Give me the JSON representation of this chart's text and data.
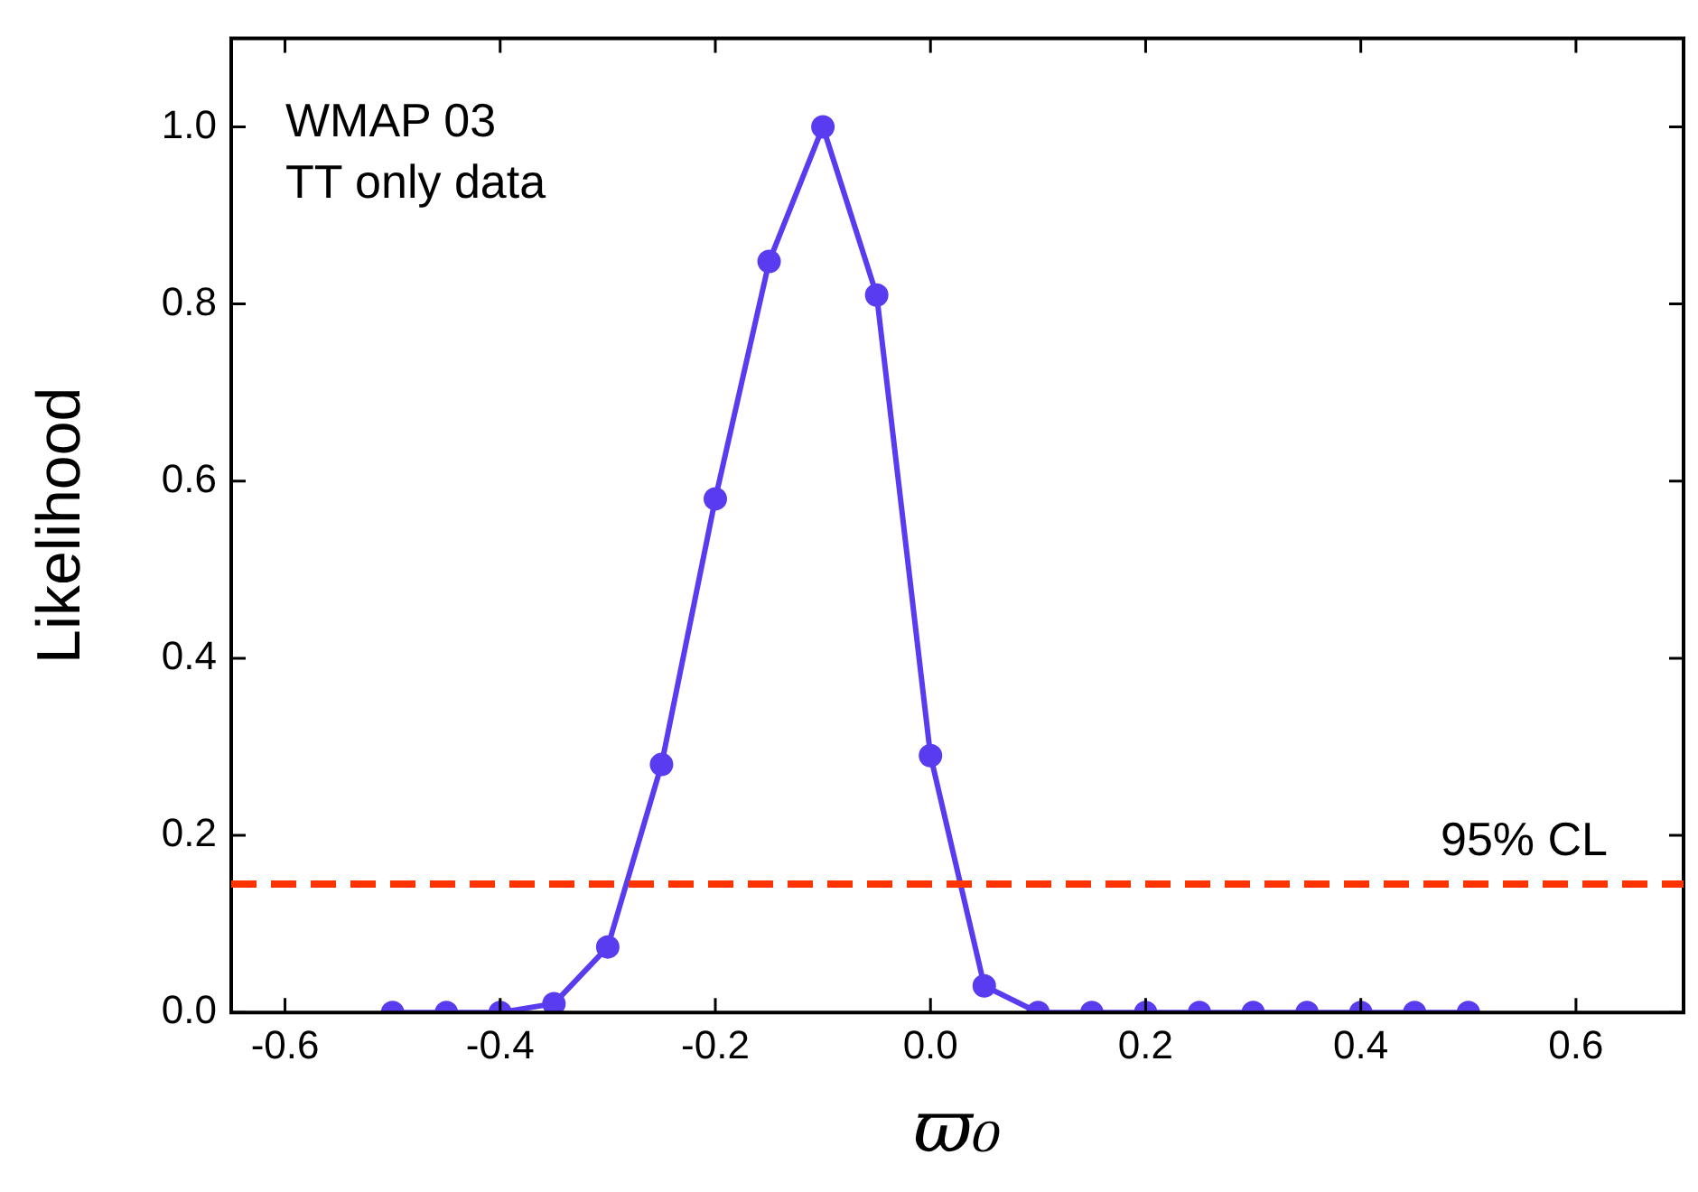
{
  "chart_data": {
    "type": "line",
    "xlabel": "ϖ₀",
    "ylabel": "Likelihood",
    "x": [
      -0.5,
      -0.45,
      -0.4,
      -0.35,
      -0.3,
      -0.25,
      -0.2,
      -0.15,
      -0.1,
      -0.05,
      0,
      0.05,
      0.1,
      0.15,
      0.2,
      0.25,
      0.3,
      0.35,
      0.4,
      0.45,
      0.5
    ],
    "series": [
      {
        "color": "#5a3cf0",
        "values": [
          0,
          0,
          0,
          0.01,
          0.074,
          0.28,
          0.58,
          0.848,
          1.0,
          0.81,
          0.29,
          0.03,
          0,
          0,
          0,
          0,
          0,
          0,
          0,
          0,
          0
        ]
      }
    ],
    "marker": "circle",
    "line_style": "solid",
    "grid": false,
    "legend": false,
    "xlim": [
      -0.65,
      0.7
    ],
    "ylim": [
      0,
      1.1
    ],
    "xticks": [
      -0.6,
      -0.4,
      -0.2,
      {
        "value": 0,
        "label": "0.0"
      },
      0.2,
      0.4,
      0.6
    ],
    "yticks": [
      {
        "value": 0,
        "label": "0.0"
      },
      0.2,
      0.4,
      0.6,
      0.8,
      {
        "value": 1,
        "label": "1.0"
      }
    ],
    "ref_lines": [
      {
        "axis": "y",
        "value": 0.145,
        "label": "95% CL",
        "color": "#ff3300",
        "line_style": "dashed"
      }
    ],
    "annotations": [
      "WMAP 03",
      "TT only data"
    ]
  }
}
